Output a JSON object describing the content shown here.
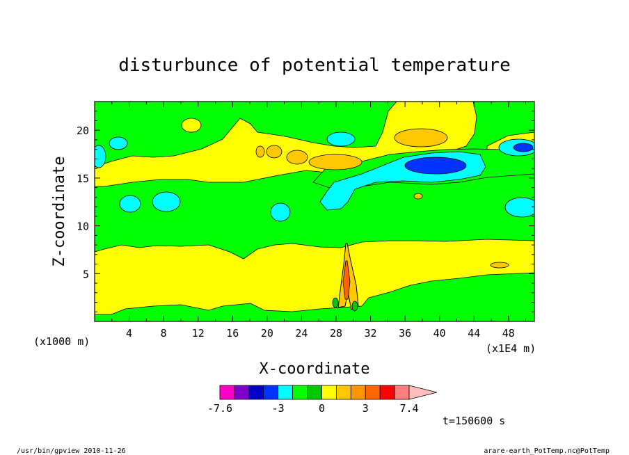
{
  "chart_data": {
    "type": "heatmap",
    "title": "disturbunce of potential temperature",
    "xlabel": "X-coordinate",
    "ylabel": "Z-coordinate",
    "x_unit_left": "(x1000 m)",
    "x_unit_right": "(x1E4 m)",
    "xlim": [
      0,
      51
    ],
    "ylim": [
      0,
      23
    ],
    "xticks": [
      4,
      8,
      12,
      16,
      20,
      24,
      28,
      32,
      36,
      40,
      44,
      48
    ],
    "yticks": [
      5,
      10,
      15,
      20
    ],
    "colorbar": {
      "levels": [
        -7.6,
        -6.4,
        -5.2,
        -4.1,
        -3.0,
        -1.9,
        -0.8,
        0,
        1,
        2,
        3,
        4,
        5,
        7.4
      ],
      "colors": [
        "#ff00c8",
        "#ff00c8",
        "#7f00c8",
        "#0000c8",
        "#0033ff",
        "#00ffff",
        "#00ff00",
        "#00c800",
        "#ffff00",
        "#ffc800",
        "#ff9600",
        "#ff6400",
        "#ff0000",
        "#ff7f7f",
        "#ffbebe"
      ],
      "tick_labels": [
        "-7.6",
        "-3",
        "0",
        "3",
        "7.4"
      ]
    },
    "regions": [
      {
        "level": "0 to 1",
        "color": "#00ff00",
        "desc": "background, z 8.5-13 and upper rows"
      },
      {
        "level": "1 to 2",
        "color": "#ffff00",
        "desc": "lower layer z 0.5-8.5, band z 14.5-17 to x 20, band z 16-22 x 34-44"
      },
      {
        "level": "2 to 3",
        "color": "#ffc800",
        "desc": "small warm cores near z 17 and z 20"
      },
      {
        "level": "-1 to 0",
        "color": "#00ffff",
        "desc": "cold pockets near z 12-13 and z 15-17 x 28-42"
      },
      {
        "level": "-2 to -1",
        "color": "#0033ff",
        "desc": "core near x 39 z 16.5, small near x 49 z 18"
      }
    ],
    "plume": {
      "x": 29.5,
      "z_top": 8.2,
      "desc": "narrow convective plume"
    }
  },
  "time_label": "t=150600 s",
  "footer_left": "/usr/bin/gpview   2010-11-26",
  "footer_right": "arare-earth_PotTemp.nc@PotTemp"
}
